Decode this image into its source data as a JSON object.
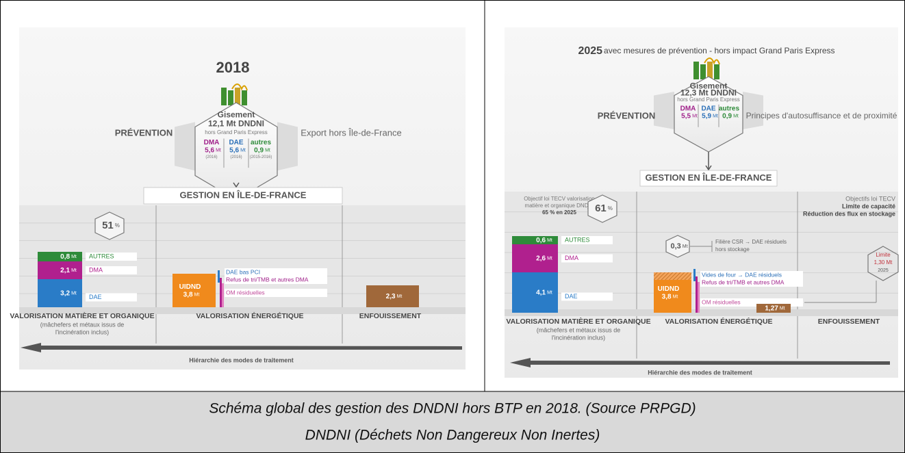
{
  "panels": [
    {
      "title_year": "2018",
      "gisement": {
        "title": "Gisement",
        "amount": "12,1 Mt DNDNI",
        "note": "hors Grand Paris Express",
        "parts": [
          {
            "name": "DMA",
            "value": "5,6",
            "unit": "Mt",
            "note": "(2016)"
          },
          {
            "name": "DAE",
            "value": "5,6",
            "unit": "Mt",
            "note": "(2016)"
          },
          {
            "name": "autres",
            "value": "0,9",
            "unit": "Mt",
            "note": "(2015-2016)"
          }
        ]
      },
      "prevention": "PRÉVENTION",
      "side_text": "Export hors Île-de-France",
      "gestion": "GESTION EN ÎLE-DE-FRANCE",
      "rate": {
        "value": "51",
        "unit": "%"
      },
      "stack": [
        {
          "value": "0,8",
          "unit": "Mt",
          "label": "AUTRES"
        },
        {
          "value": "2,1",
          "unit": "Mt",
          "label": "DMA"
        },
        {
          "value": "3,2",
          "unit": "Mt",
          "label": "DAE"
        }
      ],
      "uidnd": {
        "name": "UIDND",
        "value": "3,8",
        "unit": "Mt"
      },
      "energy_labels": [
        "DAE bas PCI",
        "Refus de tri/TMB et autres DMA",
        "OM résiduelles"
      ],
      "landfill": {
        "value": "2,3",
        "unit": "Mt"
      },
      "columns": [
        "VALORISATION MATIÈRE ET ORGANIQUE",
        "VALORISATION ÉNERGÉTIQUE",
        "ENFOUISSEMENT"
      ],
      "column_note": [
        "(mâchefers et métaux issus de",
        "l'incinération inclus)"
      ],
      "hierarchy": "Hiérarchie des modes de traitement"
    },
    {
      "title_year": "2025",
      "title_rest": "avec mesures de prévention - hors impact Grand Paris Express",
      "gisement": {
        "title": "Gisement",
        "amount": "12,3 Mt DNDNI",
        "note": "hors Grand Paris Express",
        "parts": [
          {
            "name": "DMA",
            "value": "5,5",
            "unit": "Mt"
          },
          {
            "name": "DAE",
            "value": "5,9",
            "unit": "Mt"
          },
          {
            "name": "autres",
            "value": "0,9",
            "unit": "Mt"
          }
        ]
      },
      "prevention": "PRÉVENTION",
      "side_text": "Principes d'autosuffisance et de proximité",
      "gestion": "GESTION EN ÎLE-DE-FRANCE",
      "objective_left": [
        "Objectif loi TECV valorisation",
        "matière et organique DNDNI",
        "65 % en 2025"
      ],
      "objective_right": [
        "Objectifs loi TECV",
        "Limite de capacité",
        "Réduction des flux en stockage"
      ],
      "rate": {
        "value": "61",
        "unit": "%"
      },
      "stack": [
        {
          "value": "0,6",
          "unit": "Mt",
          "label": "AUTRES"
        },
        {
          "value": "2,6",
          "unit": "Mt",
          "label": "DMA"
        },
        {
          "value": "4,1",
          "unit": "Mt",
          "label": "DAE"
        }
      ],
      "csr": {
        "value": "0,3",
        "unit": "Mt",
        "text": [
          "Filière CSR → DAE résiduels",
          "hors stockage"
        ]
      },
      "uidnd": {
        "name": "UIDND",
        "value": "3,8",
        "unit": "Mt"
      },
      "energy_labels": [
        "Vides de four → DAE résiduels",
        "Refus de tri/TMB et autres DMA",
        "OM résiduelles"
      ],
      "limit": [
        "Limite",
        "1,30 Mt",
        "2025"
      ],
      "landfill": {
        "value": "1,27",
        "unit": "Mt"
      },
      "columns": [
        "VALORISATION MATIÈRE ET ORGANIQUE",
        "VALORISATION ÉNERGÉTIQUE",
        "ENFOUISSEMENT"
      ],
      "column_note": [
        "(mâchefers et métaux issus de",
        "l'incinération inclus)"
      ],
      "hierarchy": "Hiérarchie des modes de traitement"
    }
  ],
  "caption": [
    "Schéma global des gestion des DNDNI hors BTP en 2018. (Source PRPGD)",
    "DNDNI  (Déchets Non Dangereux Non Inertes)"
  ]
}
